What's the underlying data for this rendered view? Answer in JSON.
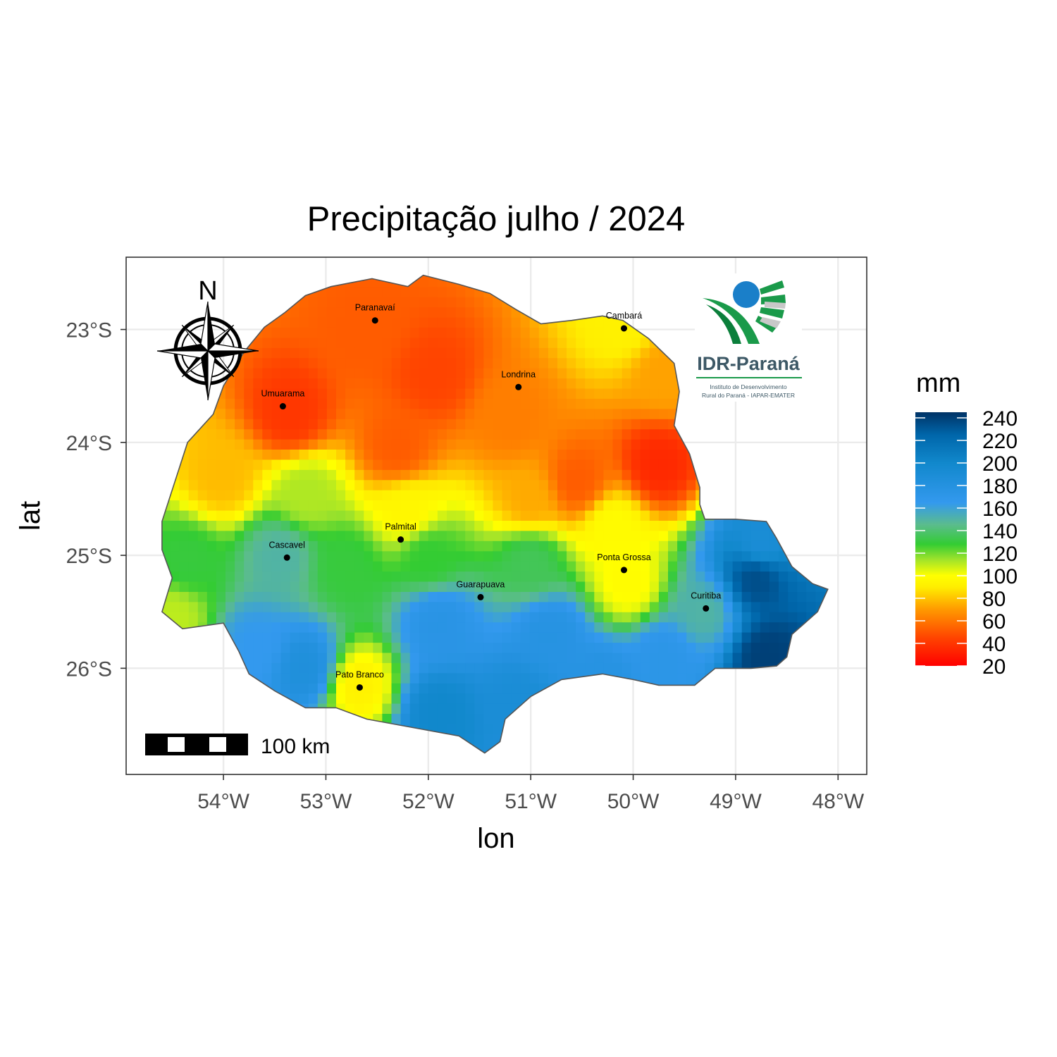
{
  "title": "Precipitação julho / 2024",
  "x_axis": {
    "title": "lon",
    "ticks": [
      {
        "value": -54,
        "label": "54°W"
      },
      {
        "value": -53,
        "label": "53°W"
      },
      {
        "value": -52,
        "label": "52°W"
      },
      {
        "value": -51,
        "label": "51°W"
      },
      {
        "value": -50,
        "label": "50°W"
      },
      {
        "value": -49,
        "label": "49°W"
      },
      {
        "value": -48,
        "label": "48°W"
      }
    ]
  },
  "y_axis": {
    "title": "lat",
    "ticks": [
      {
        "value": -23,
        "label": "23°S"
      },
      {
        "value": -24,
        "label": "24°S"
      },
      {
        "value": -25,
        "label": "25°S"
      },
      {
        "value": -26,
        "label": "26°S"
      }
    ]
  },
  "extent": {
    "lon_min": -54.95,
    "lon_max": -47.72,
    "lat_min": -26.94,
    "lat_max": -22.36
  },
  "legend": {
    "title": "mm",
    "min": 20,
    "max": 245,
    "ticks": [
      240,
      220,
      200,
      180,
      160,
      140,
      120,
      100,
      80,
      60,
      40,
      20
    ],
    "colors": [
      {
        "v": 20,
        "c": "#ff0000"
      },
      {
        "v": 45,
        "c": "#ff4400"
      },
      {
        "v": 70,
        "c": "#ff9900"
      },
      {
        "v": 90,
        "c": "#ffee00"
      },
      {
        "v": 100,
        "c": "#ffff00"
      },
      {
        "v": 115,
        "c": "#9be22c"
      },
      {
        "v": 128,
        "c": "#33cc33"
      },
      {
        "v": 145,
        "c": "#5bbc8c"
      },
      {
        "v": 165,
        "c": "#3399ee"
      },
      {
        "v": 200,
        "c": "#1188cc"
      },
      {
        "v": 225,
        "c": "#0066aa"
      },
      {
        "v": 245,
        "c": "#003366"
      }
    ]
  },
  "cities": [
    {
      "name": "Paranavaí",
      "lon": -52.52,
      "lat": -22.92
    },
    {
      "name": "Cambará",
      "lon": -50.09,
      "lat": -22.99
    },
    {
      "name": "Londrina",
      "lon": -51.12,
      "lat": -23.51
    },
    {
      "name": "Umuarama",
      "lon": -53.42,
      "lat": -23.68
    },
    {
      "name": "Palmital",
      "lon": -52.27,
      "lat": -24.86
    },
    {
      "name": "Cascavel",
      "lon": -53.38,
      "lat": -25.02
    },
    {
      "name": "Ponta Grossa",
      "lon": -50.09,
      "lat": -25.13
    },
    {
      "name": "Guarapuava",
      "lon": -51.49,
      "lat": -25.37
    },
    {
      "name": "Curitiba",
      "lon": -49.29,
      "lat": -25.47
    },
    {
      "name": "Pato Branco",
      "lon": -52.67,
      "lat": -26.17
    }
  ],
  "precip_centers": [
    {
      "lon": -53.35,
      "lat": -23.75,
      "v": 40
    },
    {
      "lon": -51.95,
      "lat": -23.4,
      "v": 45
    },
    {
      "lon": -52.6,
      "lat": -23.0,
      "v": 52
    },
    {
      "lon": -52.3,
      "lat": -24.05,
      "v": 52
    },
    {
      "lon": -51.2,
      "lat": -23.8,
      "v": 62
    },
    {
      "lon": -49.75,
      "lat": -24.2,
      "v": 35
    },
    {
      "lon": -50.55,
      "lat": -24.35,
      "v": 52
    },
    {
      "lon": -50.1,
      "lat": -22.95,
      "v": 92
    },
    {
      "lon": -49.7,
      "lat": -23.4,
      "v": 72
    },
    {
      "lon": -51.0,
      "lat": -24.5,
      "v": 74
    },
    {
      "lon": -54.0,
      "lat": -24.3,
      "v": 78
    },
    {
      "lon": -53.2,
      "lat": -24.45,
      "v": 112
    },
    {
      "lon": -52.2,
      "lat": -24.6,
      "v": 95
    },
    {
      "lon": -50.2,
      "lat": -24.75,
      "v": 98
    },
    {
      "lon": -53.45,
      "lat": -25.0,
      "v": 150
    },
    {
      "lon": -54.35,
      "lat": -25.05,
      "v": 130
    },
    {
      "lon": -54.5,
      "lat": -25.55,
      "v": 110
    },
    {
      "lon": -52.8,
      "lat": -25.1,
      "v": 130
    },
    {
      "lon": -52.0,
      "lat": -25.0,
      "v": 128
    },
    {
      "lon": -51.0,
      "lat": -25.05,
      "v": 135
    },
    {
      "lon": -50.05,
      "lat": -25.25,
      "v": 98
    },
    {
      "lon": -49.3,
      "lat": -25.5,
      "v": 150
    },
    {
      "lon": -48.8,
      "lat": -25.2,
      "v": 235
    },
    {
      "lon": -48.7,
      "lat": -25.9,
      "v": 240
    },
    {
      "lon": -48.75,
      "lat": -24.9,
      "v": 190
    },
    {
      "lon": -51.9,
      "lat": -25.6,
      "v": 175
    },
    {
      "lon": -50.8,
      "lat": -25.7,
      "v": 178
    },
    {
      "lon": -49.7,
      "lat": -25.9,
      "v": 172
    },
    {
      "lon": -53.2,
      "lat": -26.0,
      "v": 185
    },
    {
      "lon": -53.7,
      "lat": -25.8,
      "v": 165
    },
    {
      "lon": -52.68,
      "lat": -26.15,
      "v": 92
    },
    {
      "lon": -51.9,
      "lat": -26.4,
      "v": 200
    },
    {
      "lon": -51.1,
      "lat": -26.3,
      "v": 190
    },
    {
      "lon": -50.3,
      "lat": -26.1,
      "v": 178
    }
  ],
  "state_outline": [
    [
      -54.6,
      -24.7
    ],
    [
      -54.35,
      -24.0
    ],
    [
      -54.1,
      -23.75
    ],
    [
      -54.0,
      -23.5
    ],
    [
      -53.8,
      -23.2
    ],
    [
      -53.6,
      -22.98
    ],
    [
      -53.4,
      -22.85
    ],
    [
      -53.2,
      -22.7
    ],
    [
      -52.95,
      -22.62
    ],
    [
      -52.55,
      -22.55
    ],
    [
      -52.2,
      -22.62
    ],
    [
      -52.05,
      -22.52
    ],
    [
      -51.7,
      -22.6
    ],
    [
      -51.4,
      -22.68
    ],
    [
      -51.15,
      -22.82
    ],
    [
      -50.9,
      -22.95
    ],
    [
      -50.6,
      -22.92
    ],
    [
      -50.3,
      -22.88
    ],
    [
      -50.1,
      -22.92
    ],
    [
      -49.85,
      -23.08
    ],
    [
      -49.6,
      -23.3
    ],
    [
      -49.55,
      -23.55
    ],
    [
      -49.6,
      -23.85
    ],
    [
      -49.45,
      -24.1
    ],
    [
      -49.35,
      -24.4
    ],
    [
      -49.35,
      -24.55
    ],
    [
      -49.3,
      -24.68
    ],
    [
      -49.0,
      -24.68
    ],
    [
      -48.7,
      -24.7
    ],
    [
      -48.6,
      -24.85
    ],
    [
      -48.45,
      -25.1
    ],
    [
      -48.25,
      -25.25
    ],
    [
      -48.1,
      -25.3
    ],
    [
      -48.2,
      -25.5
    ],
    [
      -48.45,
      -25.7
    ],
    [
      -48.5,
      -25.9
    ],
    [
      -48.6,
      -25.98
    ],
    [
      -48.85,
      -26.0
    ],
    [
      -49.2,
      -26.0
    ],
    [
      -49.4,
      -26.15
    ],
    [
      -49.75,
      -26.15
    ],
    [
      -50.0,
      -26.1
    ],
    [
      -50.3,
      -26.05
    ],
    [
      -50.7,
      -26.1
    ],
    [
      -51.0,
      -26.25
    ],
    [
      -51.25,
      -26.45
    ],
    [
      -51.3,
      -26.65
    ],
    [
      -51.45,
      -26.75
    ],
    [
      -51.7,
      -26.6
    ],
    [
      -52.0,
      -26.55
    ],
    [
      -52.3,
      -26.5
    ],
    [
      -52.6,
      -26.45
    ],
    [
      -52.9,
      -26.35
    ],
    [
      -53.2,
      -26.35
    ],
    [
      -53.5,
      -26.2
    ],
    [
      -53.75,
      -26.05
    ],
    [
      -53.85,
      -25.85
    ],
    [
      -54.0,
      -25.6
    ],
    [
      -54.4,
      -25.65
    ],
    [
      -54.6,
      -25.5
    ],
    [
      -54.5,
      -25.2
    ],
    [
      -54.6,
      -24.95
    ]
  ],
  "scale_bar": {
    "label": "100 km"
  },
  "north_arrow": {
    "label": "N"
  },
  "logo": {
    "name": "IDR-Paraná",
    "line1": "Instituto de Desenvolvimento",
    "line2": "Rural do Paraná - IAPAR-EMATER"
  }
}
